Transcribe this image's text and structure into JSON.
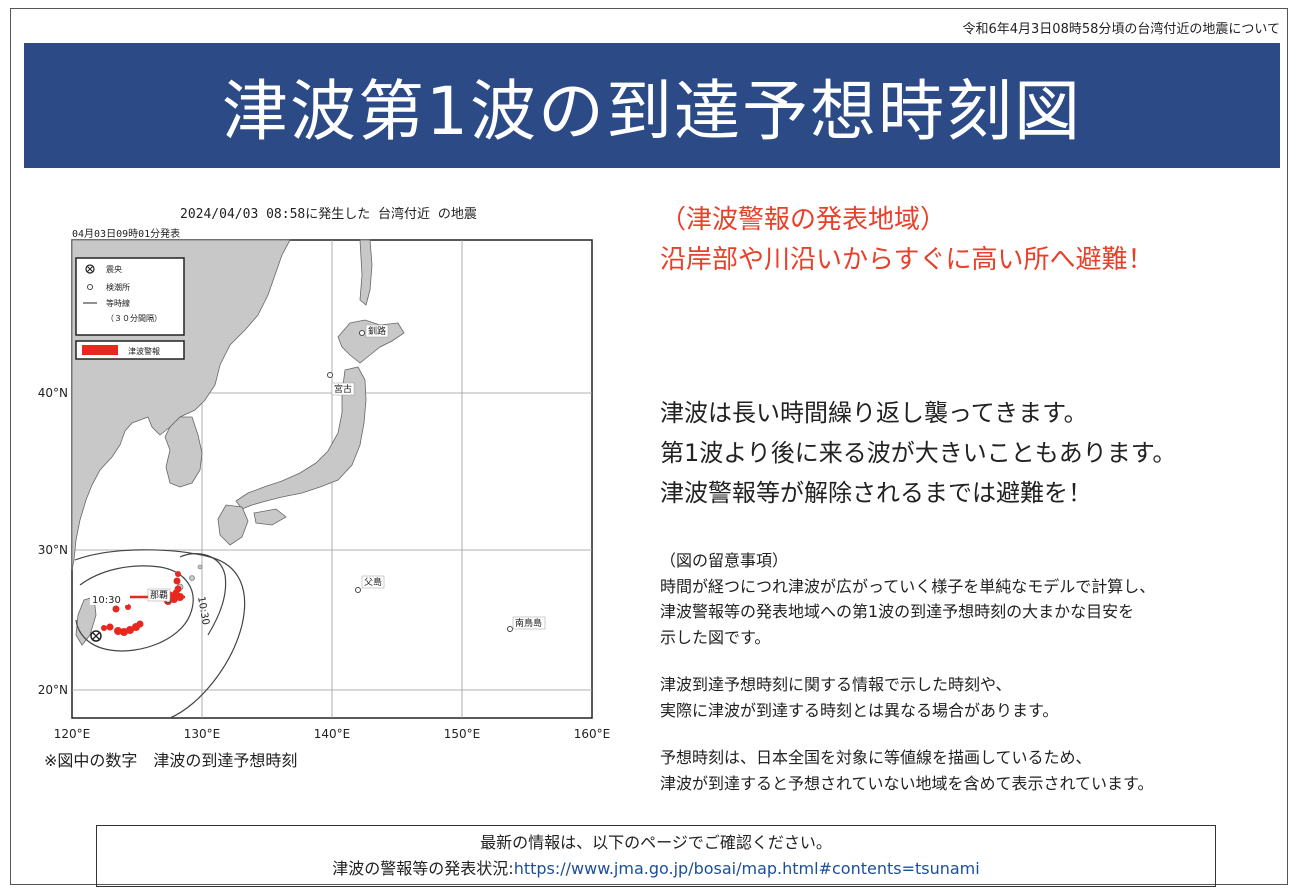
{
  "header": {
    "subtitle": "令和6年4月3日08時58分頃の台湾付近の地震について",
    "title": "津波第1波の到達予想時刻図"
  },
  "map": {
    "heading": "2024/04/03 08:58に発生した 台湾付近 の地震",
    "issued": "04月03日09時01分発表",
    "legend": {
      "epicenter": "震央",
      "station": "検潮所",
      "isochrone": "等時線",
      "isochrone_interval": "（３０分間隔）",
      "warning": "津波警報"
    },
    "lat_labels": [
      "40°N",
      "30°N",
      "20°N"
    ],
    "lon_labels": [
      "120°E",
      "130°E",
      "140°E",
      "150°E",
      "160°E"
    ],
    "places": [
      "釧路",
      "宮古",
      "父島",
      "南鳥島",
      "那覇"
    ],
    "contour_labels": [
      "10:30",
      "10:30"
    ],
    "colors": {
      "land": "#c8c8c8",
      "sea": "#ffffff",
      "warning": "#e8281e"
    },
    "note": "※図中の数字　津波の到達予想時刻"
  },
  "warning": {
    "line1": "（津波警報の発表地域）",
    "line2": "沿岸部や川沿いからすぐに高い所へ避難！"
  },
  "message": {
    "line1": "津波は長い時間繰り返し襲ってきます。",
    "line2": "第1波より後に来る波が大きいこともあります。",
    "line3": "津波警報等が解除されるまでは避難を！"
  },
  "notes": {
    "heading": "（図の留意事項）",
    "p1_l1": "時間が経つにつれ津波が広がっていく様子を単純なモデルで計算し、",
    "p1_l2": "津波警報等の発表地域への第1波の到達予想時刻の大まかな目安を",
    "p1_l3": "示した図です。",
    "p2_l1": "津波到達予想時刻に関する情報で示した時刻や、",
    "p2_l2": "実際に津波が到達する時刻とは異なる場合があります。",
    "p3_l1": "予想時刻は、日本全国を対象に等値線を描画しているため、",
    "p3_l2": "津波が到達すると予想されていない地域を含めて表示されています。"
  },
  "footer": {
    "line1": "最新の情報は、以下のページでご確認ください。",
    "label": "津波の警報等の発表状況:",
    "url": "https://www.jma.go.jp/bosai/map.html#contents=tsunami"
  }
}
